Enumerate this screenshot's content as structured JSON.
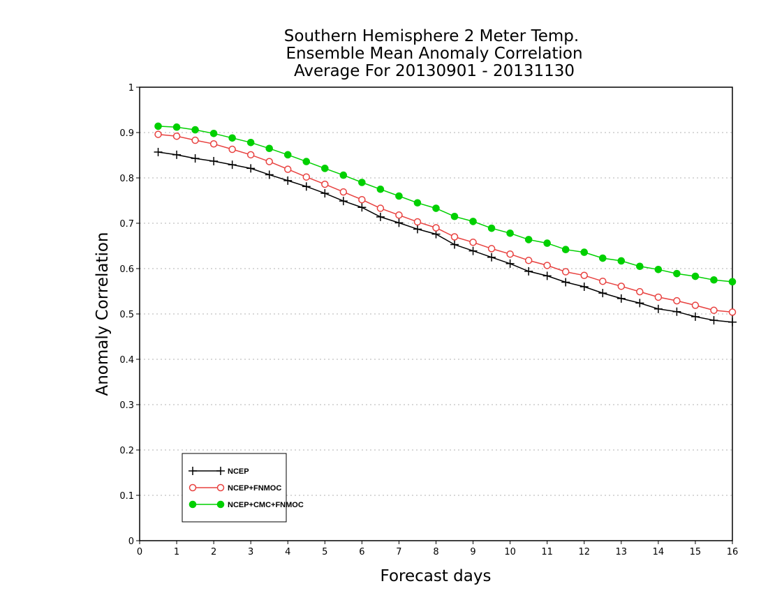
{
  "chart_data": {
    "type": "line",
    "title": [
      "Southern Hemisphere 2 Meter Temp.",
      "Ensemble Mean Anomaly Correlation",
      "Average For 20130901 - 20131130"
    ],
    "xlabel": "Forecast days",
    "ylabel": "Anomaly Correlation",
    "xlim": [
      0,
      16
    ],
    "ylim": [
      0,
      1
    ],
    "xticks": [
      "0",
      "1",
      "2",
      "3",
      "4",
      "5",
      "6",
      "7",
      "8",
      "9",
      "10",
      "11",
      "12",
      "13",
      "14",
      "15",
      "16"
    ],
    "yticks": [
      "0",
      "0.1",
      "0.2",
      "0.3",
      "0.4",
      "0.5",
      "0.6",
      "0.7",
      "0.8",
      "0.9",
      "1"
    ],
    "grid": "horizontal dotted",
    "legend_position": "bottom-left",
    "x": [
      0.5,
      1,
      1.5,
      2,
      2.5,
      3,
      3.5,
      4,
      4.5,
      5,
      5.5,
      6,
      6.5,
      7,
      7.5,
      8,
      8.5,
      9,
      9.5,
      10,
      10.5,
      11,
      11.5,
      12,
      12.5,
      13,
      13.5,
      14,
      14.5,
      15,
      15.5,
      16
    ],
    "series": [
      {
        "name": "NCEP",
        "color": "#000000",
        "marker": "plus",
        "values": [
          0.857,
          0.851,
          0.843,
          0.837,
          0.829,
          0.821,
          0.807,
          0.794,
          0.781,
          0.766,
          0.749,
          0.735,
          0.714,
          0.701,
          0.687,
          0.676,
          0.653,
          0.639,
          0.625,
          0.611,
          0.594,
          0.584,
          0.57,
          0.56,
          0.546,
          0.534,
          0.524,
          0.511,
          0.505,
          0.494,
          0.486,
          0.482
        ]
      },
      {
        "name": "NCEP+FNMOC",
        "color": "#e8413f",
        "marker": "open-circle",
        "values": [
          0.896,
          0.892,
          0.883,
          0.875,
          0.863,
          0.851,
          0.836,
          0.819,
          0.802,
          0.786,
          0.769,
          0.752,
          0.733,
          0.718,
          0.703,
          0.69,
          0.67,
          0.658,
          0.644,
          0.632,
          0.618,
          0.607,
          0.593,
          0.585,
          0.572,
          0.561,
          0.549,
          0.537,
          0.529,
          0.519,
          0.508,
          0.504
        ]
      },
      {
        "name": "NCEP+CMC+FNMOC",
        "color": "#00d000",
        "marker": "filled-circle",
        "values": [
          0.914,
          0.912,
          0.906,
          0.898,
          0.888,
          0.878,
          0.865,
          0.851,
          0.836,
          0.821,
          0.806,
          0.79,
          0.775,
          0.76,
          0.745,
          0.733,
          0.715,
          0.704,
          0.689,
          0.678,
          0.664,
          0.656,
          0.642,
          0.636,
          0.623,
          0.617,
          0.605,
          0.598,
          0.589,
          0.583,
          0.575,
          0.571
        ]
      }
    ]
  }
}
